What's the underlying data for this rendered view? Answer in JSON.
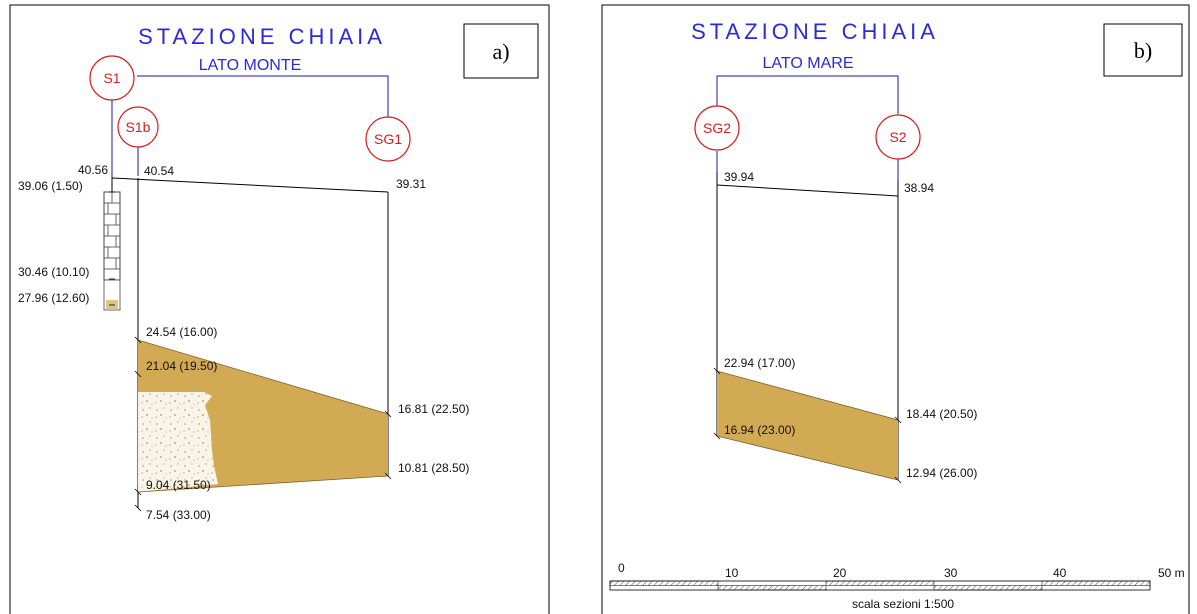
{
  "colors": {
    "title": "#2a2adb",
    "circle": "#d42020",
    "fill": "#d2aa54",
    "line": "#1a1aa8"
  },
  "panel_a": {
    "title": "STAZIONE CHIAIA",
    "subtitle": "LATO MONTE",
    "letter": "a)",
    "boreholes": {
      "s1": "S1",
      "s1b": "S1b",
      "sg1": "SG1"
    },
    "labels": {
      "s1_top": "40.56",
      "s1b_top": "40.54",
      "sg1_top": "39.31",
      "s1_a": "39.06 (1.50)",
      "s1_b": "30.46 (10.10)",
      "s1_c": "27.96 (12.60)",
      "s1b_a": "24.54 (16.00)",
      "s1b_b": "21.04 (19.50)",
      "s1b_c": "9.04 (31.50)",
      "s1b_d": "7.54 (33.00)",
      "sg1_a": "16.81 (22.50)",
      "sg1_b": "10.81 (28.50)"
    }
  },
  "panel_b": {
    "title": "STAZIONE CHIAIA",
    "subtitle": "LATO MARE",
    "letter": "b)",
    "boreholes": {
      "sg2": "SG2",
      "s2": "S2"
    },
    "labels": {
      "sg2_top": "39.94",
      "s2_top": "38.94",
      "sg2_a": "22.94 (17.00)",
      "sg2_b": "16.94 (23.00)",
      "s2_a": "18.44 (20.50)",
      "s2_b": "12.94 (26.00)"
    },
    "scale": {
      "ticks": [
        "0",
        "10",
        "20",
        "30",
        "40",
        "50 m"
      ],
      "caption": "scala sezioni 1:500"
    }
  }
}
